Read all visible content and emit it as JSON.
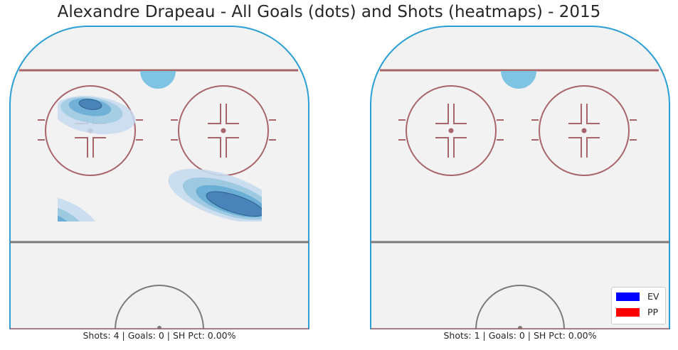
{
  "title": "Alexandre Drapeau - All Goals (dots) and Shots (heatmaps) - 2015",
  "panels": [
    {
      "caption": "Shots: 4 | Goals: 0 | SH Pct: 0.00%",
      "shots": 4,
      "goals": 0,
      "sh_pct": "0.00%"
    },
    {
      "caption": "Shots: 1 | Goals: 0 | SH Pct: 0.00%",
      "shots": 1,
      "goals": 0,
      "sh_pct": "0.00%"
    }
  ],
  "legend": {
    "placement": "lower-right",
    "items": [
      {
        "label": "EV",
        "color": "#0000ff"
      },
      {
        "label": "PP",
        "color": "#ff0000"
      }
    ]
  },
  "colors": {
    "ice": "#f2f2f2",
    "boards": "#2a9fd6",
    "goal_line": "#a86468",
    "faceoff": "#a86468",
    "center_line": "#7a7a7a",
    "crease": "#7ec4e2",
    "heat": [
      "#c6dbef",
      "#9ecae1",
      "#6baed6",
      "#4a83b8",
      "#2b6aa6"
    ]
  },
  "chart_data": {
    "type": "heatmap",
    "title": "Alexandre Drapeau - All Goals (dots) and Shots (heatmaps) - 2015",
    "panels": [
      {
        "caption": "Shots: 4 | Goals: 0 | SH Pct: 0.00%",
        "shots": 4,
        "goals": 0,
        "sh_pct": 0.0,
        "goal_points": []
      },
      {
        "caption": "Shots: 1 | Goals: 0 | SH Pct: 0.00%",
        "shots": 1,
        "goals": 0,
        "sh_pct": 0.0,
        "goal_points": []
      }
    ],
    "legend": [
      "EV",
      "PP"
    ]
  }
}
